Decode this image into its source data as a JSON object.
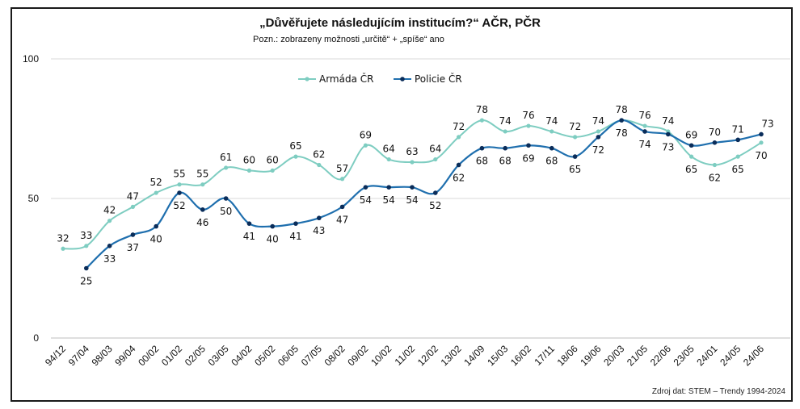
{
  "chart_data": {
    "type": "line",
    "title": "„Důvěřujete následujícím institucím?“ AČR, PČR",
    "subtitle": "Pozn.: zobrazeny možnosti „určitě“ + „spíše“ ano",
    "source": "Zdroj dat: STEM – Trendy 1994-2024",
    "categories": [
      "94/12",
      "97/04",
      "98/03",
      "99/04",
      "00/02",
      "01/02",
      "02/05",
      "03/05",
      "04/02",
      "05/02",
      "06/05",
      "07/05",
      "08/02",
      "09/02",
      "10/02",
      "11/02",
      "12/02",
      "13/02",
      "14/09",
      "15/03",
      "16/02",
      "17/11",
      "18/06",
      "19/06",
      "20/03",
      "21/05",
      "22/06",
      "23/05",
      "24/01",
      "24/05",
      "24/06"
    ],
    "ylim": [
      0,
      100
    ],
    "yticks": [
      0,
      50,
      100
    ],
    "grid": true,
    "legend_position": "top-left",
    "series": [
      {
        "name": "Armáda ČR",
        "color": "#7ecdc1",
        "values": [
          32,
          33,
          42,
          47,
          52,
          55,
          55,
          61,
          60,
          60,
          65,
          62,
          57,
          69,
          64,
          63,
          64,
          72,
          78,
          74,
          76,
          74,
          72,
          74,
          78,
          76,
          74,
          65,
          62,
          65,
          70
        ]
      },
      {
        "name": "Policie ČR",
        "color": "#1f6fae",
        "values": [
          null,
          25,
          33,
          37,
          40,
          52,
          46,
          50,
          41,
          40,
          41,
          43,
          47,
          54,
          54,
          54,
          52,
          62,
          68,
          68,
          69,
          68,
          65,
          72,
          78,
          74,
          73,
          69,
          70,
          71,
          73
        ]
      }
    ]
  }
}
